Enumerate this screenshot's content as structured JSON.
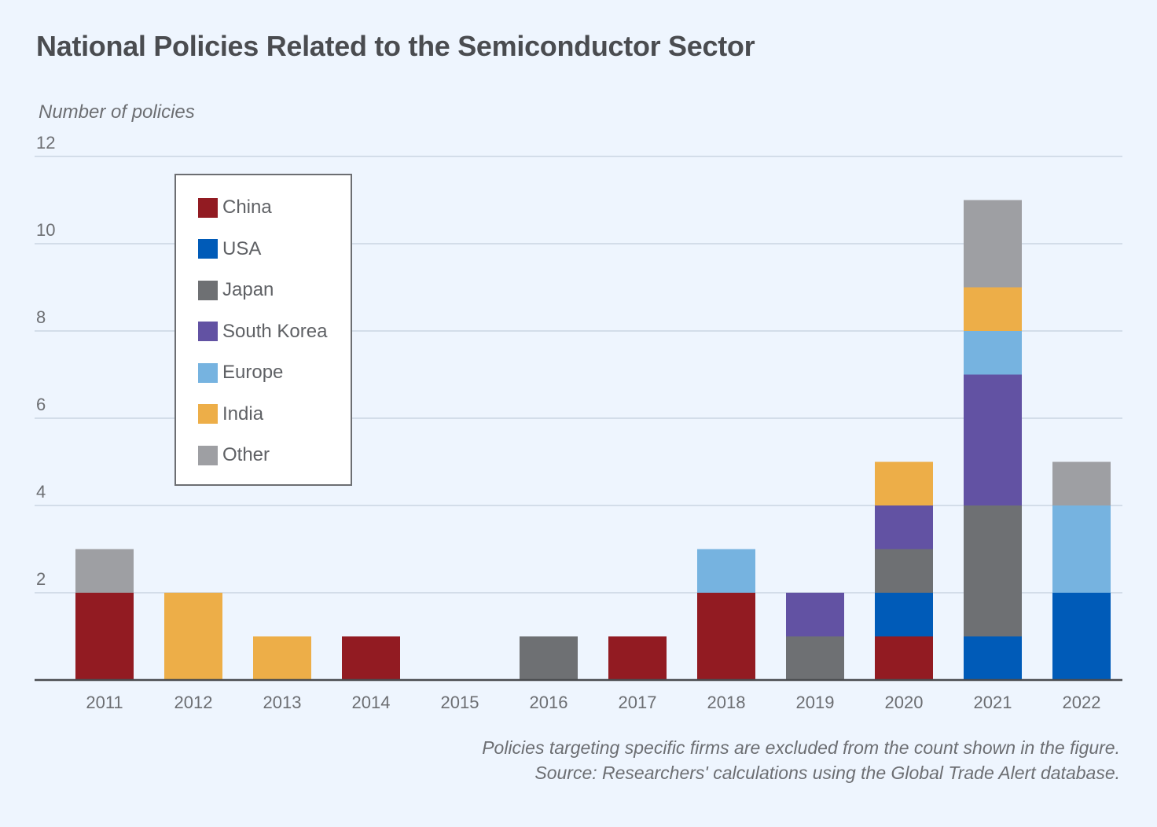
{
  "chart_data": {
    "type": "bar",
    "stacked": true,
    "title": "National Policies Related to the Semiconductor Sector",
    "xlabel": "",
    "ylabel": "Number of policies",
    "ylim": [
      0,
      12
    ],
    "yticks": [
      2,
      4,
      6,
      8,
      10,
      12
    ],
    "grid": true,
    "legend_position": "top-left",
    "categories": [
      "2011",
      "2012",
      "2013",
      "2014",
      "2015",
      "2016",
      "2017",
      "2018",
      "2019",
      "2020",
      "2021",
      "2022"
    ],
    "series": [
      {
        "name": "China",
        "color": "#921b22",
        "values": [
          2,
          0,
          0,
          1,
          0,
          0,
          1,
          2,
          0,
          1,
          0,
          0
        ]
      },
      {
        "name": "USA",
        "color": "#005bb8",
        "values": [
          0,
          0,
          0,
          0,
          0,
          0,
          0,
          0,
          0,
          1,
          1,
          2
        ]
      },
      {
        "name": "Japan",
        "color": "#6e7073",
        "values": [
          0,
          0,
          0,
          0,
          0,
          1,
          0,
          0,
          1,
          1,
          3,
          0
        ]
      },
      {
        "name": "South Korea",
        "color": "#6252a3",
        "values": [
          0,
          0,
          0,
          0,
          0,
          0,
          0,
          0,
          1,
          1,
          3,
          0
        ]
      },
      {
        "name": "Europe",
        "color": "#76b3e0",
        "values": [
          0,
          0,
          0,
          0,
          0,
          0,
          0,
          1,
          0,
          0,
          1,
          2
        ]
      },
      {
        "name": "India",
        "color": "#edae48",
        "values": [
          0,
          2,
          1,
          0,
          0,
          0,
          0,
          0,
          0,
          1,
          1,
          0
        ]
      },
      {
        "name": "Other",
        "color": "#9e9fa3",
        "values": [
          1,
          0,
          0,
          0,
          0,
          0,
          0,
          0,
          0,
          0,
          2,
          1
        ]
      }
    ],
    "notes": [
      "Policies targeting specific firms are excluded from the count shown in the figure.",
      "Source: Researchers' calculations using the Global Trade Alert database."
    ]
  }
}
